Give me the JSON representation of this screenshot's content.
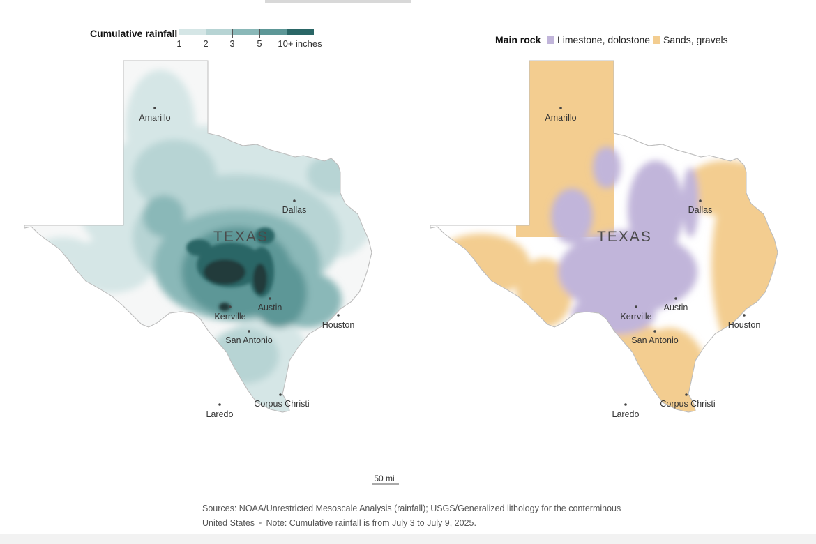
{
  "rainfall_legend": {
    "title": "Cumulative rainfall",
    "ticks": [
      "1",
      "2",
      "3",
      "5",
      "10+ inches"
    ],
    "colors": [
      "#d5e6e6",
      "#b7d4d4",
      "#8ab8b8",
      "#5d9797",
      "#2a6666",
      "#213a3a"
    ]
  },
  "rock_legend": {
    "title": "Main rock",
    "items": [
      {
        "label": "Limestone, dolostone",
        "color": "#c1b5da"
      },
      {
        "label": "Sands, gravels",
        "color": "#f3cd90"
      }
    ]
  },
  "state_label": "TEXAS",
  "cities": [
    "Amarillo",
    "Dallas",
    "Austin",
    "Kerrville",
    "Houston",
    "San Antonio",
    "Corpus Christi",
    "Laredo"
  ],
  "scale_label": "50 mi",
  "source": {
    "line1": "Sources: NOAA/Unrestricted Mesoscale Analysis (rainfall); USGS/Generalized lithology for the conterminous",
    "line2a": "United States",
    "line2b": "Note: Cumulative rainfall is from July 3 to July 9, 2025."
  }
}
